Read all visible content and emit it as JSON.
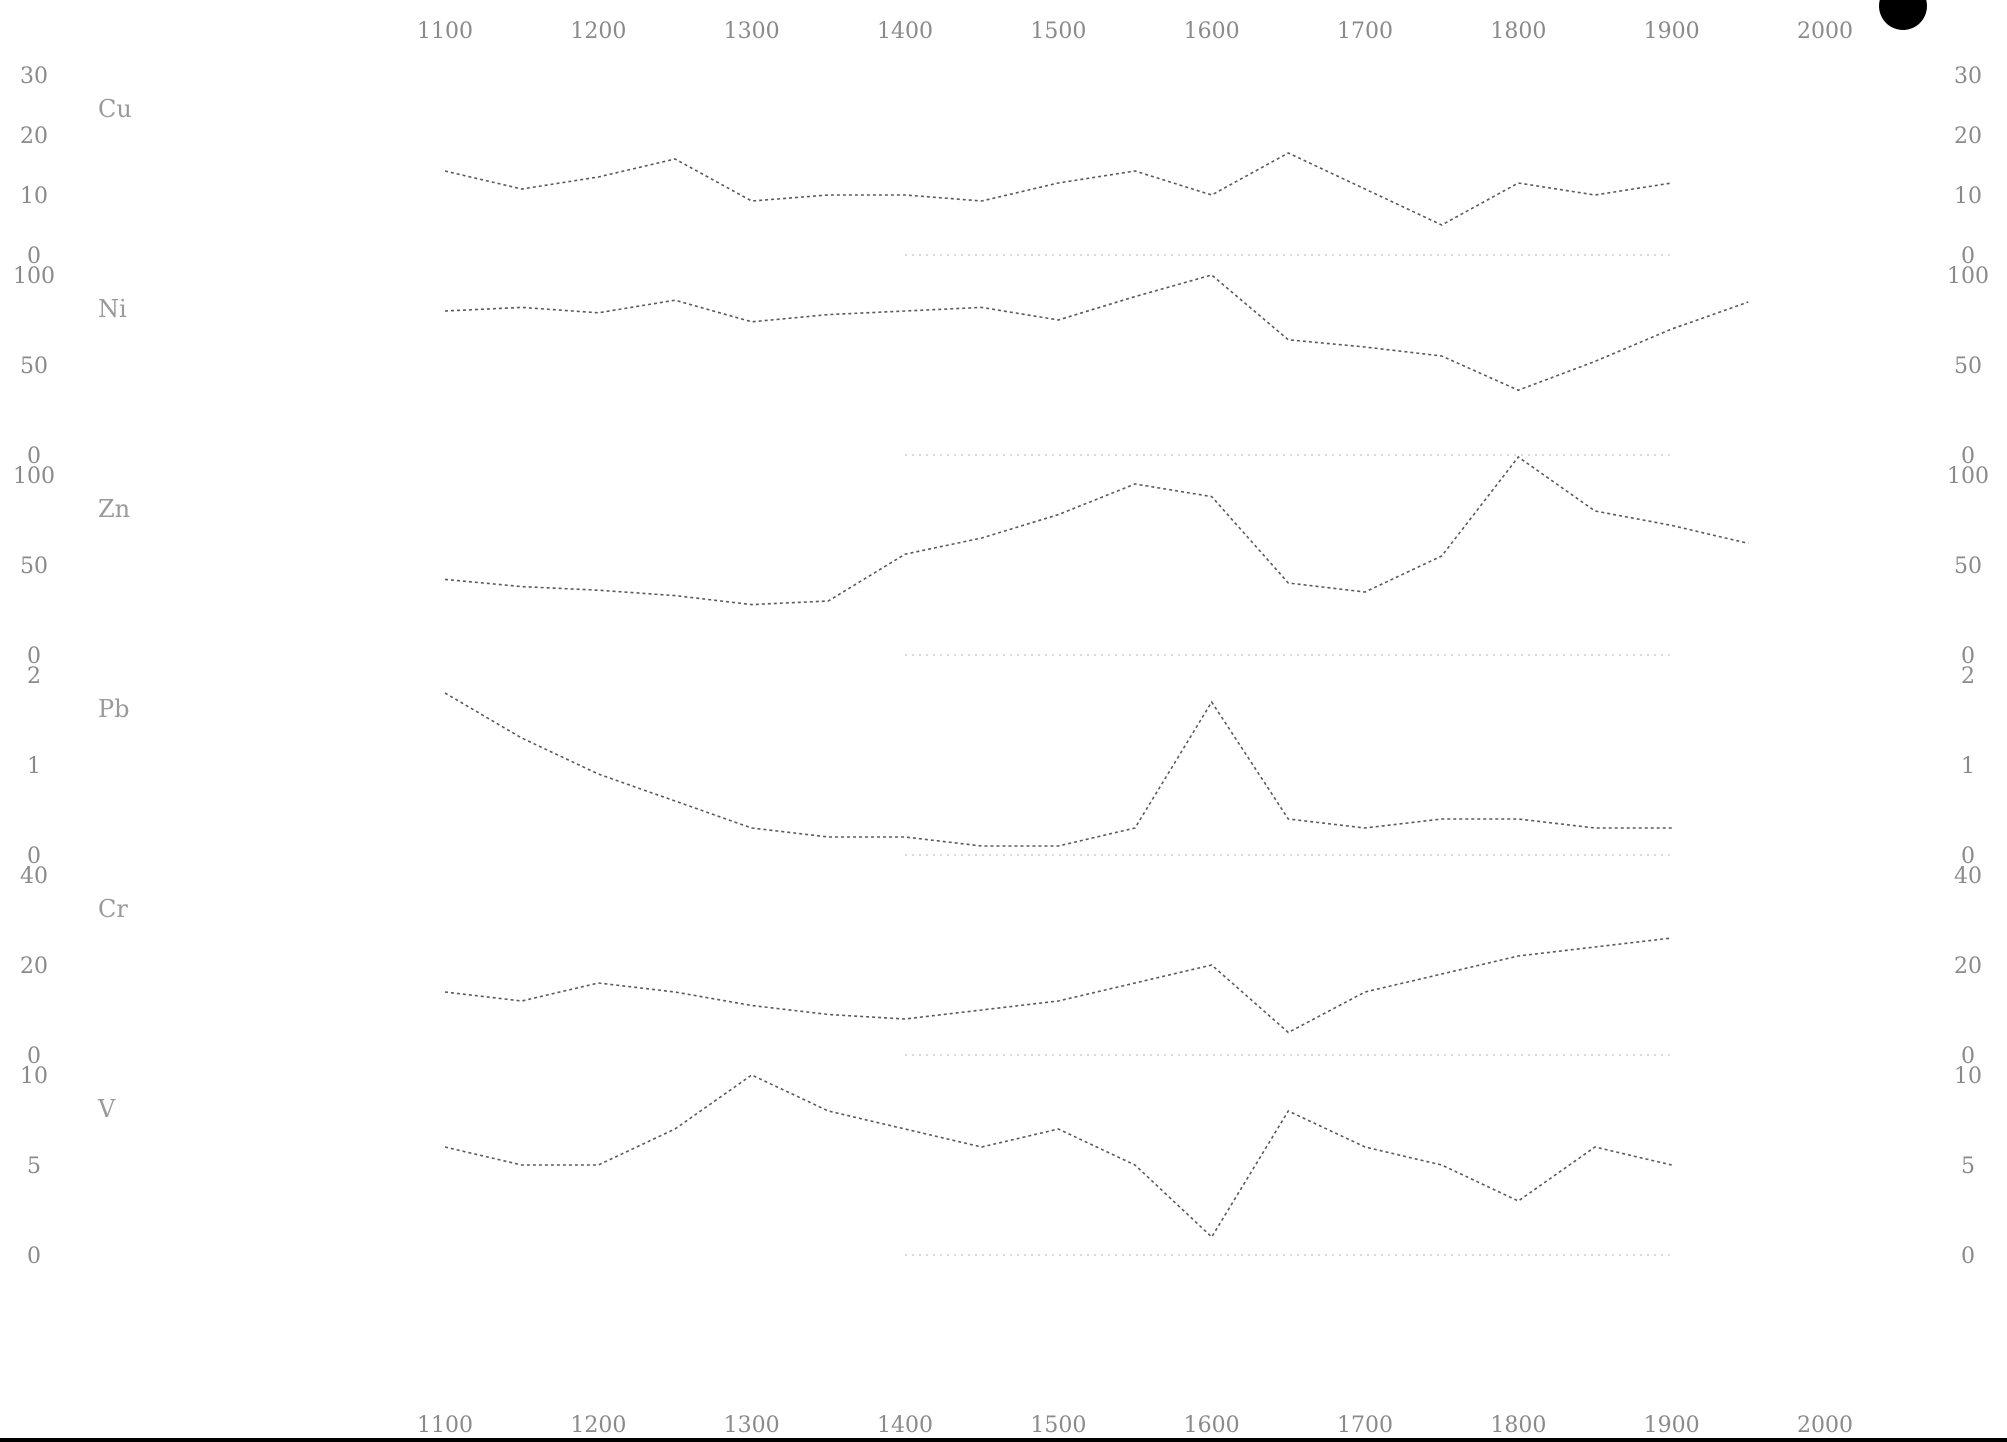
{
  "chart_data": {
    "type": "line",
    "title": "",
    "xlabel": "",
    "x_tick_labels_top": [
      "1100",
      "1200",
      "1300",
      "1400",
      "1500",
      "1600",
      "1700",
      "1800",
      "1900",
      "2000"
    ],
    "x_tick_labels_bottom": [
      "1100",
      "1200",
      "1300",
      "1400",
      "1500",
      "1600",
      "1700",
      "1800",
      "1900",
      "2000"
    ],
    "xlim": [
      1100,
      2000
    ],
    "grid": false,
    "legend": "none",
    "line_color": "#5a5a5a",
    "panels": [
      {
        "label": "Cu",
        "ylim": [
          0,
          30
        ],
        "y_ticks": [
          "0",
          "10",
          "20",
          "30"
        ],
        "x": [
          1100,
          1150,
          1200,
          1250,
          1300,
          1350,
          1400,
          1450,
          1500,
          1550,
          1600,
          1650,
          1700,
          1750,
          1800,
          1850,
          1900
        ],
        "values": [
          14,
          11,
          13,
          16,
          9,
          10,
          10,
          9,
          12,
          14,
          10,
          17,
          11,
          5,
          12,
          10,
          12
        ]
      },
      {
        "label": "Ni",
        "ylim": [
          0,
          100
        ],
        "y_ticks": [
          "0",
          "50",
          "100"
        ],
        "x": [
          1100,
          1150,
          1200,
          1250,
          1300,
          1350,
          1400,
          1450,
          1500,
          1550,
          1600,
          1650,
          1700,
          1750,
          1800,
          1850,
          1900,
          1950
        ],
        "values": [
          80,
          82,
          79,
          86,
          74,
          78,
          80,
          82,
          75,
          88,
          100,
          64,
          60,
          55,
          36,
          52,
          70,
          85
        ]
      },
      {
        "label": "Zn",
        "ylim": [
          0,
          100
        ],
        "y_ticks": [
          "0",
          "50",
          "100"
        ],
        "x": [
          1100,
          1150,
          1200,
          1250,
          1300,
          1350,
          1400,
          1450,
          1500,
          1550,
          1600,
          1650,
          1700,
          1750,
          1800,
          1850,
          1900,
          1950
        ],
        "values": [
          42,
          38,
          36,
          33,
          28,
          30,
          56,
          65,
          78,
          95,
          88,
          40,
          35,
          55,
          110,
          80,
          72,
          62
        ]
      },
      {
        "label": "Pb",
        "ylim": [
          0,
          2
        ],
        "y_ticks": [
          "0",
          "1",
          "2"
        ],
        "x": [
          1100,
          1150,
          1200,
          1250,
          1300,
          1350,
          1400,
          1450,
          1500,
          1550,
          1600,
          1650,
          1700,
          1750,
          1800,
          1850,
          1900
        ],
        "values": [
          1.8,
          1.3,
          0.9,
          0.6,
          0.3,
          0.2,
          0.2,
          0.1,
          0.1,
          0.3,
          1.7,
          0.4,
          0.3,
          0.4,
          0.4,
          0.3,
          0.3
        ]
      },
      {
        "label": "Cr",
        "ylim": [
          0,
          40
        ],
        "y_ticks": [
          "0",
          "20",
          "40"
        ],
        "x": [
          1100,
          1150,
          1200,
          1250,
          1300,
          1350,
          1400,
          1450,
          1500,
          1550,
          1600,
          1650,
          1700,
          1750,
          1800,
          1850,
          1900
        ],
        "values": [
          14,
          12,
          16,
          14,
          11,
          9,
          8,
          10,
          12,
          16,
          20,
          5,
          14,
          18,
          22,
          24,
          26
        ]
      },
      {
        "label": "V",
        "ylim": [
          0,
          10
        ],
        "y_ticks": [
          "0",
          "5",
          "10"
        ],
        "x": [
          1100,
          1150,
          1200,
          1250,
          1300,
          1350,
          1400,
          1450,
          1500,
          1550,
          1600,
          1650,
          1700,
          1750,
          1800,
          1850,
          1900
        ],
        "values": [
          6,
          5,
          5,
          7,
          10,
          8,
          7,
          6,
          7,
          5,
          1,
          8,
          6,
          5,
          3,
          6,
          5
        ]
      }
    ]
  }
}
